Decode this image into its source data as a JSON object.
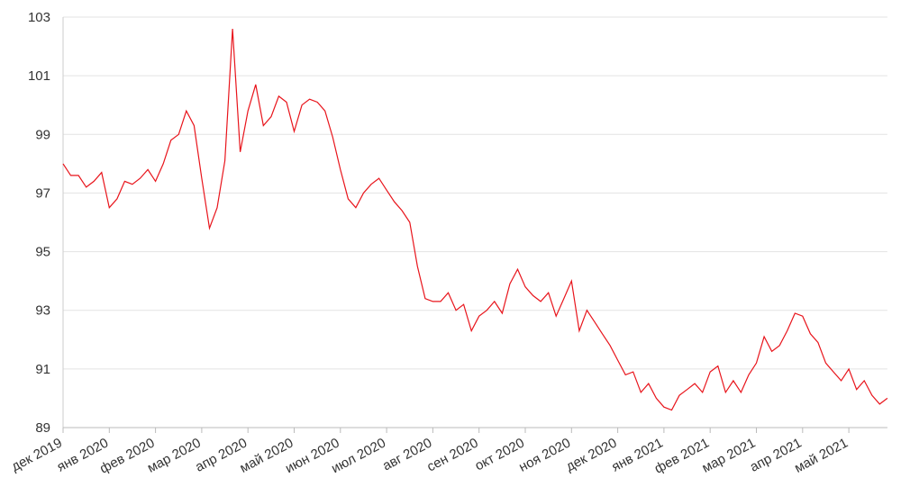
{
  "chart_data": {
    "type": "line",
    "color": "#e8141b",
    "grid": true,
    "ylim": [
      89,
      103
    ],
    "yticks": [
      89,
      91,
      93,
      95,
      97,
      99,
      101,
      103
    ],
    "categories": [
      "дек 2019",
      null,
      null,
      null,
      null,
      null,
      "янв 2020",
      null,
      null,
      null,
      null,
      null,
      "фев 2020",
      null,
      null,
      null,
      null,
      null,
      "мар 2020",
      null,
      null,
      null,
      null,
      null,
      "апр 2020",
      null,
      null,
      null,
      null,
      null,
      "май 2020",
      null,
      null,
      null,
      null,
      null,
      "июн 2020",
      null,
      null,
      null,
      null,
      null,
      "июл 2020",
      null,
      null,
      null,
      null,
      null,
      "авг 2020",
      null,
      null,
      null,
      null,
      null,
      "сен 2020",
      null,
      null,
      null,
      null,
      null,
      "окт 2020",
      null,
      null,
      null,
      null,
      null,
      "ноя 2020",
      null,
      null,
      null,
      null,
      null,
      "дек 2020",
      null,
      null,
      null,
      null,
      null,
      "янв 2021",
      null,
      null,
      null,
      null,
      null,
      "фев 2021",
      null,
      null,
      null,
      null,
      null,
      "мар 2021",
      null,
      null,
      null,
      null,
      null,
      "апр 2021",
      null,
      null,
      null,
      null,
      null,
      "май 2021",
      null,
      null,
      null,
      null,
      null
    ],
    "values": [
      98.0,
      97.6,
      97.6,
      97.2,
      97.4,
      97.7,
      96.5,
      96.8,
      97.4,
      97.3,
      97.5,
      97.8,
      97.4,
      98.0,
      98.8,
      99.0,
      99.8,
      99.3,
      97.5,
      95.8,
      96.5,
      98.1,
      102.6,
      98.4,
      99.8,
      100.7,
      99.3,
      99.6,
      100.3,
      100.1,
      99.1,
      100.0,
      100.2,
      100.1,
      99.8,
      98.9,
      97.8,
      96.8,
      96.5,
      97.0,
      97.3,
      97.5,
      97.1,
      96.7,
      96.4,
      96.0,
      94.5,
      93.4,
      93.3,
      93.3,
      93.6,
      93.0,
      93.2,
      92.3,
      92.8,
      93.0,
      93.3,
      92.9,
      93.9,
      94.4,
      93.8,
      93.5,
      93.3,
      93.6,
      92.8,
      93.4,
      94.0,
      92.3,
      93.0,
      92.6,
      92.2,
      91.8,
      91.3,
      90.8,
      90.9,
      90.2,
      90.5,
      90.0,
      89.7,
      89.6,
      90.1,
      90.3,
      90.5,
      90.2,
      90.9,
      91.1,
      90.2,
      90.6,
      90.2,
      90.8,
      91.2,
      92.1,
      91.6,
      91.8,
      92.3,
      92.9,
      92.8,
      92.2,
      91.9,
      91.2,
      90.9,
      90.6,
      91.0,
      90.3,
      90.6,
      90.1,
      89.8,
      90.0
    ]
  }
}
